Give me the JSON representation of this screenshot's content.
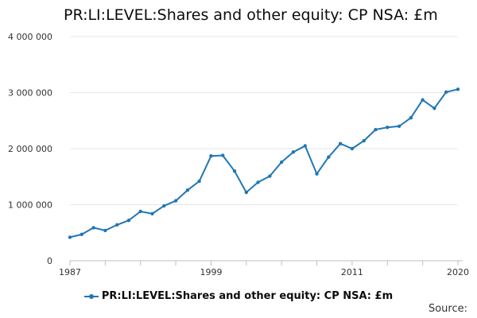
{
  "chart_data": {
    "type": "line",
    "title": "PR:LI:LEVEL:Shares and other equity: CP NSA: £m",
    "xlabel": "",
    "ylabel": "",
    "xlim": [
      1987,
      2020
    ],
    "ylim": [
      0,
      4000000
    ],
    "grid": true,
    "legend_placement": "bottom",
    "x_tick_values": [
      1987,
      1999,
      2011,
      2020
    ],
    "x_tick_labels": [
      "1987",
      "1999",
      "2011",
      "2020"
    ],
    "y_tick_values": [
      0,
      1000000,
      2000000,
      3000000,
      4000000
    ],
    "y_tick_labels": [
      "0",
      "1 000 000",
      "2 000 000",
      "3 000 000",
      "4 000 000"
    ],
    "x": [
      1987,
      1988,
      1989,
      1990,
      1991,
      1992,
      1993,
      1994,
      1995,
      1996,
      1997,
      1998,
      1999,
      2000,
      2001,
      2002,
      2003,
      2004,
      2005,
      2006,
      2007,
      2008,
      2009,
      2010,
      2011,
      2012,
      2013,
      2014,
      2015,
      2016,
      2017,
      2018,
      2019,
      2020
    ],
    "series": [
      {
        "name": "PR:LI:LEVEL:Shares and other equity: CP NSA: £m",
        "color": "#1f77b4",
        "values": [
          420000,
          470000,
          590000,
          540000,
          640000,
          720000,
          880000,
          840000,
          980000,
          1070000,
          1260000,
          1420000,
          1870000,
          1880000,
          1600000,
          1220000,
          1400000,
          1510000,
          1760000,
          1940000,
          2050000,
          1550000,
          1850000,
          2090000,
          2000000,
          2140000,
          2340000,
          2380000,
          2400000,
          2550000,
          2870000,
          2720000,
          3010000,
          3060000
        ]
      }
    ]
  },
  "source": {
    "label": "Source:"
  }
}
